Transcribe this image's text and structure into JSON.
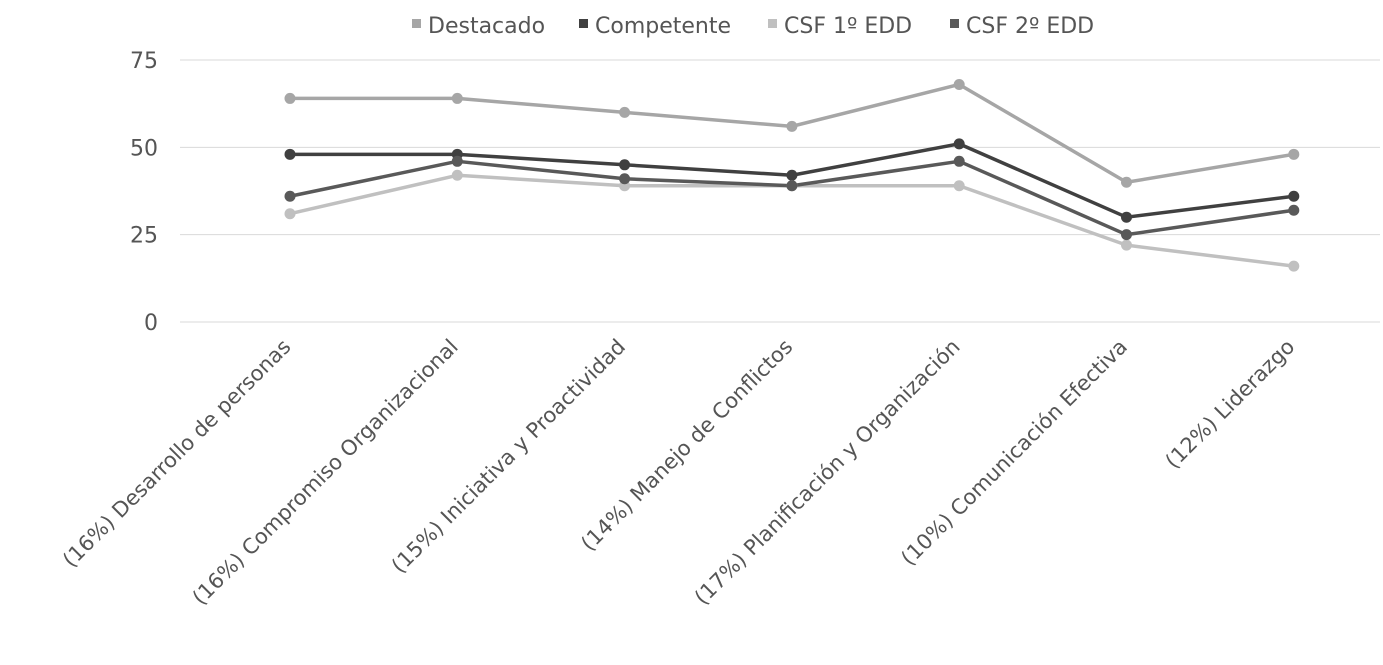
{
  "chart_data": {
    "type": "line",
    "title": "",
    "xlabel": "",
    "ylabel": "",
    "categories": [
      "(16%) Desarrollo de personas",
      "(16%) Compromiso Organizacional",
      "(15%) Iniciativa y Proactividad",
      "(14%) Manejo de Conflictos",
      "(17%) Planificación y Organización",
      "(10%) Comunicación Efectiva",
      "(12%) Liderazgo"
    ],
    "series": [
      {
        "name": "Destacado",
        "color": "#a6a6a6",
        "values": [
          64,
          64,
          60,
          56,
          68,
          40,
          48
        ]
      },
      {
        "name": "Competente",
        "color": "#404040",
        "values": [
          48,
          48,
          45,
          42,
          51,
          30,
          36
        ]
      },
      {
        "name": "CSF 1º EDD",
        "color": "#c0c0c0",
        "values": [
          31,
          42,
          39,
          39,
          39,
          22,
          16
        ]
      },
      {
        "name": "CSF 2º EDD",
        "color": "#595959",
        "values": [
          36,
          46,
          41,
          39,
          46,
          25,
          32
        ]
      }
    ],
    "ylim": [
      0,
      75
    ],
    "yticks": [
      0,
      25,
      50,
      75
    ],
    "grid": true,
    "legend": "top-center"
  }
}
